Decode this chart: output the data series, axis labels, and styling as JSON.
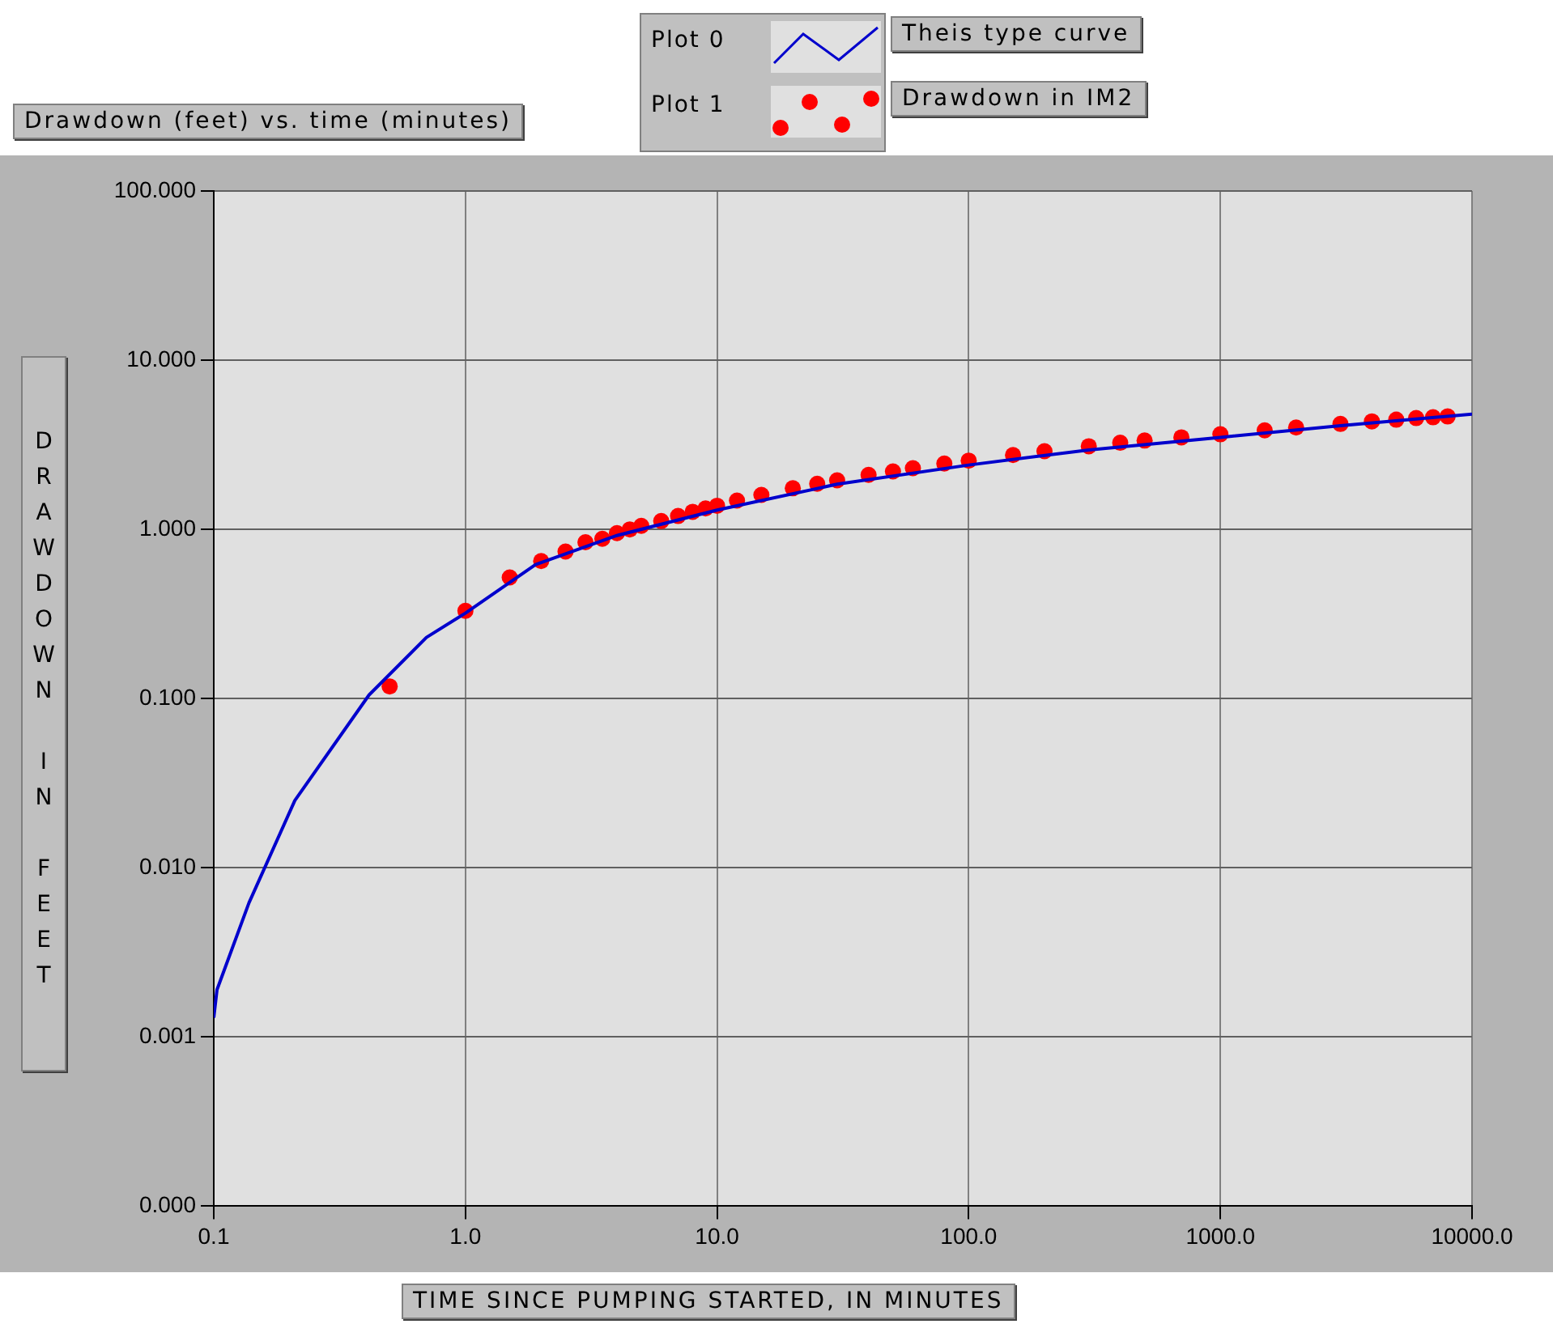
{
  "chart_data": {
    "type": "line",
    "title": "Drawdown (feet) vs. time (minutes)",
    "xlabel": "TIME SINCE PUMPING STARTED, IN MINUTES",
    "ylabel": "DRAWDOWN IN FEET",
    "log": "xy",
    "grid": true,
    "legend": "top",
    "legend_title": null,
    "annotations": [
      "Plot 0",
      "Plot 1"
    ],
    "xlim": [
      0.1,
      10000
    ],
    "xticks": [
      {
        "value": 0.1,
        "label": "0.1"
      },
      {
        "value": 1,
        "label": "1.0"
      },
      {
        "value": 10,
        "label": "10.0"
      },
      {
        "value": 100,
        "label": "100.0"
      },
      {
        "value": 1000,
        "label": "1000.0"
      },
      {
        "value": 10000,
        "label": "10000.0"
      }
    ],
    "ylim": [
      0.0001,
      100
    ],
    "yticks": [
      {
        "value": 0.0001,
        "label": "0.000"
      },
      {
        "value": 0.001,
        "label": "0.001"
      },
      {
        "value": 0.01,
        "label": "0.010"
      },
      {
        "value": 0.1,
        "label": "0.100"
      },
      {
        "value": 1,
        "label": "1.000"
      },
      {
        "value": 10,
        "label": "10.000"
      },
      {
        "value": 100,
        "label": "100.000"
      }
    ],
    "series": [
      {
        "name": "Theis type curve",
        "type": "line",
        "color": "#0000cc",
        "marker": "none",
        "x": [
          0.1,
          0.103,
          0.138,
          0.21,
          0.414,
          0.7,
          1,
          1.9,
          4,
          10,
          30,
          100,
          300,
          1000,
          3000,
          10000
        ],
        "values": [
          0.0013,
          0.0019,
          0.0062,
          0.025,
          0.105,
          0.23,
          0.32,
          0.62,
          0.92,
          1.3,
          1.85,
          2.4,
          2.95,
          3.5,
          4.1,
          4.8
        ]
      },
      {
        "name": "Drawdown in IM2",
        "type": "scatter",
        "color": "#ff0000",
        "marker": "circle",
        "x": [
          0.5,
          1,
          1.5,
          2,
          2.5,
          3,
          3.5,
          4,
          4.5,
          5,
          6,
          7,
          8,
          9,
          10,
          12,
          15,
          20,
          25,
          30,
          40,
          50,
          60,
          80,
          100,
          150,
          200,
          300,
          400,
          500,
          700,
          1000,
          1500,
          2000,
          3000,
          4000,
          5000,
          6000,
          7000,
          8000
        ],
        "values": [
          0.118,
          0.33,
          0.52,
          0.65,
          0.74,
          0.84,
          0.88,
          0.95,
          1.0,
          1.05,
          1.12,
          1.2,
          1.27,
          1.33,
          1.38,
          1.48,
          1.6,
          1.75,
          1.86,
          1.95,
          2.1,
          2.2,
          2.3,
          2.45,
          2.55,
          2.75,
          2.9,
          3.1,
          3.25,
          3.35,
          3.5,
          3.65,
          3.85,
          4.0,
          4.2,
          4.35,
          4.45,
          4.55,
          4.6,
          4.65
        ]
      }
    ]
  }
}
